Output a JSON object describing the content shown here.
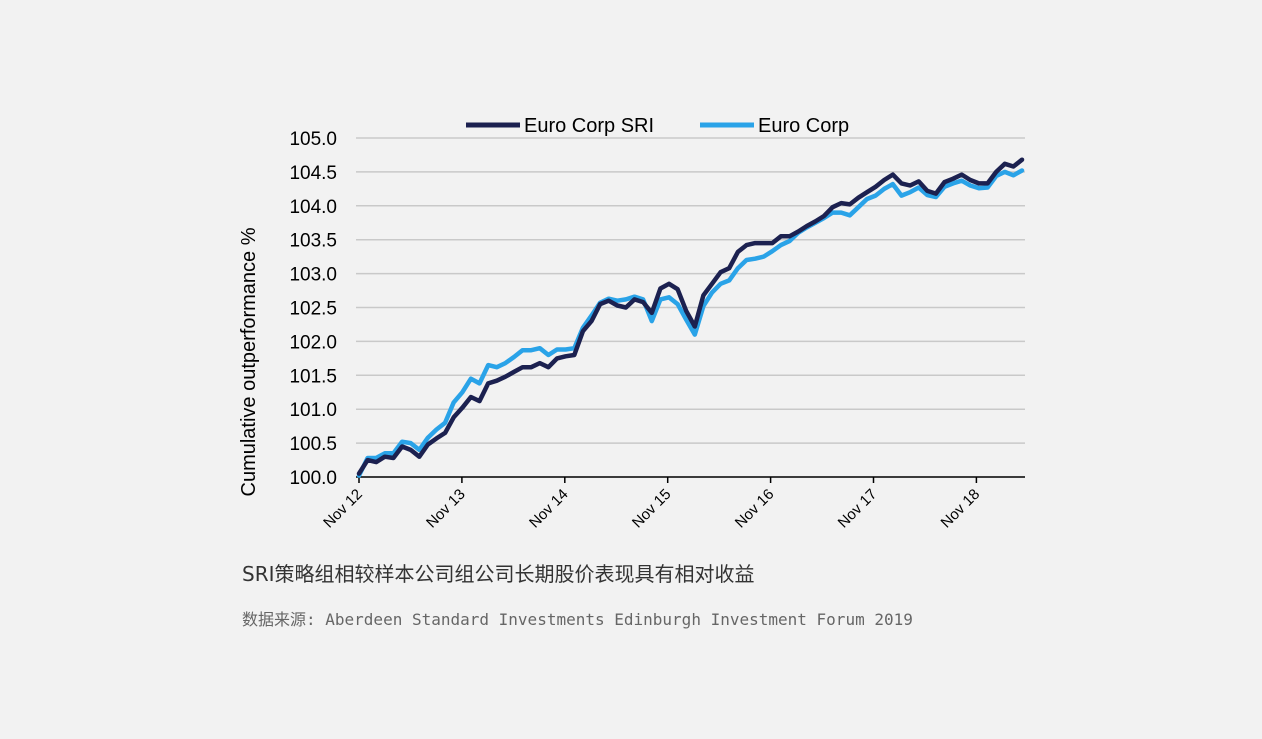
{
  "chart_data": {
    "type": "line",
    "ylabel": "Cumulative outperformance %",
    "xlabel": "",
    "ylim": [
      100.0,
      105.0
    ],
    "yticks": [
      "100.0",
      "100.5",
      "101.0",
      "101.5",
      "102.0",
      "102.5",
      "103.0",
      "103.5",
      "104.0",
      "104.5",
      "105.0"
    ],
    "xticks": [
      "Nov 12",
      "Nov 13",
      "Nov 14",
      "Nov 15",
      "Nov 16",
      "Nov 17",
      "Nov 18"
    ],
    "grid": "horizontal",
    "legend_position": "top",
    "series": [
      {
        "name": "Euro Corp SRI",
        "color": "#1c2150",
        "values": [
          100.05,
          100.25,
          100.22,
          100.3,
          100.28,
          100.45,
          100.4,
          100.3,
          100.48,
          100.57,
          100.65,
          100.88,
          101.02,
          101.18,
          101.12,
          101.38,
          101.42,
          101.48,
          101.55,
          101.62,
          101.62,
          101.68,
          101.62,
          101.75,
          101.78,
          101.8,
          102.15,
          102.3,
          102.55,
          102.6,
          102.53,
          102.5,
          102.62,
          102.58,
          102.42,
          102.78,
          102.85,
          102.77,
          102.45,
          102.22,
          102.68,
          102.85,
          103.02,
          103.08,
          103.32,
          103.42,
          103.45,
          103.45,
          103.45,
          103.55,
          103.55,
          103.62,
          103.7,
          103.77,
          103.85,
          103.98,
          104.04,
          104.02,
          104.12,
          104.2,
          104.28,
          104.38,
          104.46,
          104.33,
          104.3,
          104.36,
          104.22,
          104.18,
          104.35,
          104.4,
          104.46,
          104.38,
          104.33,
          104.33,
          104.5,
          104.62,
          104.58,
          104.68
        ]
      },
      {
        "name": "Euro Corp",
        "color": "#2aa3e8",
        "values": [
          100.02,
          100.28,
          100.28,
          100.35,
          100.35,
          100.52,
          100.5,
          100.4,
          100.58,
          100.7,
          100.8,
          101.1,
          101.25,
          101.45,
          101.38,
          101.65,
          101.62,
          101.68,
          101.77,
          101.87,
          101.87,
          101.9,
          101.8,
          101.88,
          101.88,
          101.9,
          102.2,
          102.38,
          102.57,
          102.63,
          102.6,
          102.62,
          102.66,
          102.62,
          102.3,
          102.62,
          102.65,
          102.55,
          102.32,
          102.1,
          102.52,
          102.72,
          102.85,
          102.9,
          103.08,
          103.2,
          103.22,
          103.25,
          103.33,
          103.42,
          103.48,
          103.6,
          103.68,
          103.75,
          103.82,
          103.9,
          103.9,
          103.86,
          103.98,
          104.1,
          104.15,
          104.25,
          104.32,
          104.15,
          104.2,
          104.27,
          104.16,
          104.13,
          104.28,
          104.33,
          104.37,
          104.3,
          104.26,
          104.27,
          104.44,
          104.5,
          104.45,
          104.52
        ]
      }
    ]
  },
  "caption": "SRI策略组相较样本公司组公司长期股价表现具有相对收益",
  "source": "数据来源: Aberdeen Standard Investments Edinburgh Investment Forum 2019"
}
